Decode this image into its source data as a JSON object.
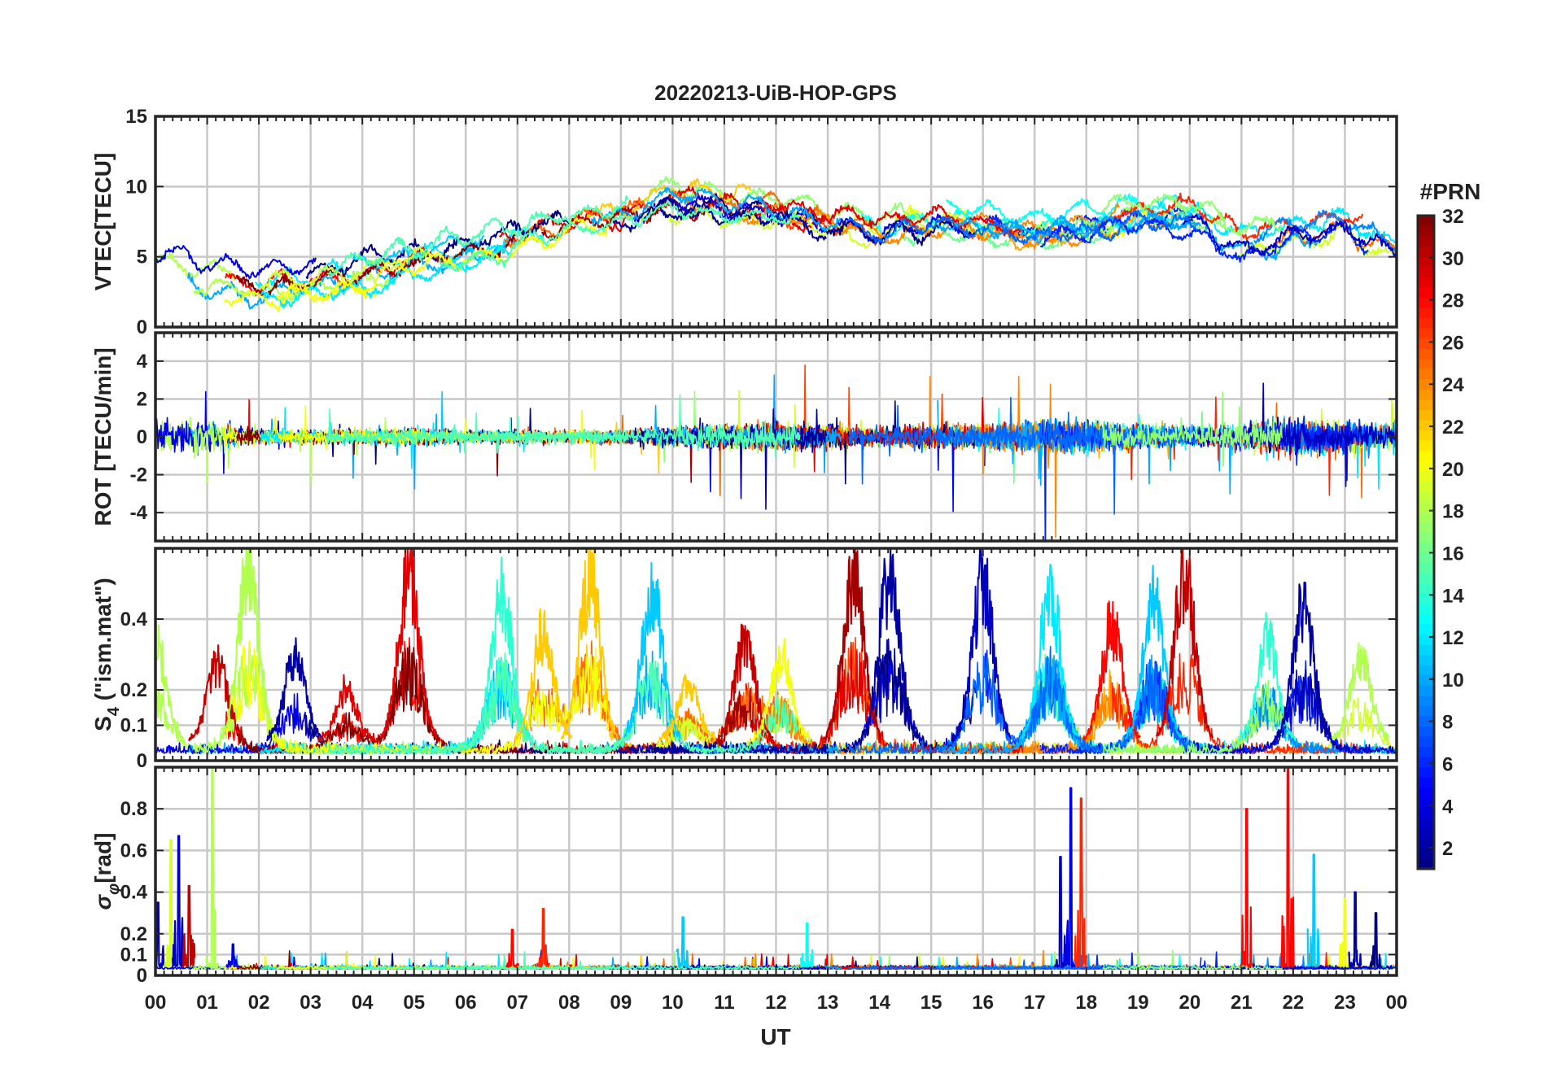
{
  "chart_data": {
    "title": "20220213-UiB-HOP-GPS",
    "type": "line",
    "xlabel": "UT",
    "x_tick_labels": [
      "00",
      "01",
      "02",
      "03",
      "04",
      "05",
      "06",
      "07",
      "08",
      "09",
      "10",
      "11",
      "12",
      "13",
      "14",
      "15",
      "16",
      "17",
      "18",
      "19",
      "20",
      "21",
      "22",
      "23",
      "00"
    ],
    "xlim_hours": [
      0,
      24
    ],
    "grid": true,
    "colorbar": {
      "label": "#PRN",
      "range": [
        1,
        32
      ],
      "ticks": [
        2,
        4,
        6,
        8,
        10,
        12,
        14,
        16,
        18,
        20,
        22,
        24,
        26,
        28,
        30,
        32
      ],
      "tick_labels": [
        "2",
        "4",
        "6",
        "8",
        "10",
        "12",
        "14",
        "16",
        "18",
        "20",
        "22",
        "24",
        "26",
        "28",
        "30",
        "32"
      ],
      "colormap": "jet"
    },
    "panels": [
      {
        "id": "vtec",
        "ylabel": "VTEC[TECU]",
        "ylim": [
          0,
          15
        ],
        "yticks": [
          0,
          5,
          10,
          15
        ],
        "ytick_labels": [
          "0",
          "5",
          "10",
          "15"
        ],
        "profile": {
          "hours": [
            0,
            1,
            2,
            3,
            4,
            5,
            6,
            7,
            8,
            9,
            10,
            11,
            12,
            13,
            14,
            15,
            16,
            17,
            18,
            19,
            20,
            21,
            22,
            23,
            24
          ],
          "typical_vtec": [
            4.5,
            3.5,
            3.2,
            3.5,
            4.0,
            4.8,
            5.5,
            6.5,
            7.5,
            8.0,
            9.0,
            8.5,
            8.5,
            7.5,
            7.0,
            7.5,
            7.0,
            6.5,
            7.0,
            7.5,
            7.5,
            5.5,
            6.5,
            7.0,
            5.0
          ]
        }
      },
      {
        "id": "rot",
        "ylabel": "ROT [TECU/min]",
        "ylim": [
          -5.5,
          5.5
        ],
        "yticks": [
          -4,
          -2,
          0,
          2,
          4
        ],
        "ytick_labels": [
          "-4",
          "-2",
          "0",
          "2",
          "4"
        ],
        "profile": {
          "hours": [
            0,
            1,
            2,
            3,
            4,
            5,
            6,
            7,
            8,
            9,
            10,
            11,
            12,
            13,
            14,
            15,
            16,
            17,
            18,
            19,
            20,
            21,
            22,
            23,
            24
          ],
          "typical_amplitude": [
            1.5,
            1.5,
            0.6,
            0.6,
            0.6,
            0.8,
            0.5,
            0.6,
            0.6,
            0.6,
            0.8,
            1.0,
            1.2,
            1.0,
            0.8,
            1.0,
            1.0,
            1.4,
            1.4,
            1.0,
            0.8,
            1.2,
            1.6,
            1.4,
            1.2
          ]
        }
      },
      {
        "id": "s4",
        "ylabel": "S4 (\"ism.mat\")",
        "ylabel_main": "S",
        "ylabel_sub": "4",
        "ylabel_rest": " (\"ism.mat\")",
        "ylim": [
          0,
          0.6
        ],
        "yticks": [
          0,
          0.1,
          0.2,
          0.4
        ],
        "ytick_labels": [
          "0",
          "0.1",
          "0.2",
          "0.4"
        ],
        "events": [
          {
            "center_h": 0.0,
            "peak": 0.35,
            "prn": 18
          },
          {
            "center_h": 1.2,
            "peak": 0.28,
            "prn": 30
          },
          {
            "center_h": 1.8,
            "peak": 0.6,
            "prn": 18
          },
          {
            "center_h": 2.7,
            "peak": 0.3,
            "prn": 2
          },
          {
            "center_h": 3.7,
            "peak": 0.18,
            "prn": 29
          },
          {
            "center_h": 4.9,
            "peak": 0.6,
            "prn": 29
          },
          {
            "center_h": 6.7,
            "peak": 0.52,
            "prn": 14
          },
          {
            "center_h": 7.5,
            "peak": 0.38,
            "prn": 22
          },
          {
            "center_h": 8.4,
            "peak": 0.6,
            "prn": 22
          },
          {
            "center_h": 9.6,
            "peak": 0.55,
            "prn": 11
          },
          {
            "center_h": 10.3,
            "peak": 0.2,
            "prn": 22
          },
          {
            "center_h": 11.4,
            "peak": 0.35,
            "prn": 30
          },
          {
            "center_h": 12.1,
            "peak": 0.3,
            "prn": 20
          },
          {
            "center_h": 13.5,
            "peak": 0.6,
            "prn": 31
          },
          {
            "center_h": 14.2,
            "peak": 0.6,
            "prn": 2
          },
          {
            "center_h": 16.0,
            "peak": 0.57,
            "prn": 3
          },
          {
            "center_h": 17.3,
            "peak": 0.54,
            "prn": 12
          },
          {
            "center_h": 18.5,
            "peak": 0.42,
            "prn": 28
          },
          {
            "center_h": 19.3,
            "peak": 0.5,
            "prn": 11
          },
          {
            "center_h": 19.9,
            "peak": 0.6,
            "prn": 30
          },
          {
            "center_h": 21.5,
            "peak": 0.36,
            "prn": 14
          },
          {
            "center_h": 22.2,
            "peak": 0.48,
            "prn": 2
          },
          {
            "center_h": 23.3,
            "peak": 0.3,
            "prn": 18
          }
        ]
      },
      {
        "id": "sigma_phi",
        "ylabel": "σφ[rad]",
        "ylabel_main": "σ",
        "ylabel_sub": "φ",
        "ylabel_rest": "[rad]",
        "ylim": [
          0,
          1.0
        ],
        "yticks": [
          0,
          0.1,
          0.2,
          0.4,
          0.6,
          0.8
        ],
        "ytick_labels": [
          "0",
          "0.1",
          "0.2",
          "0.4",
          "0.6",
          "0.8"
        ],
        "spikes": [
          {
            "h": 0.05,
            "v": 0.35,
            "prn": 3
          },
          {
            "h": 0.3,
            "v": 0.65,
            "prn": 19
          },
          {
            "h": 0.45,
            "v": 0.67,
            "prn": 3
          },
          {
            "h": 0.65,
            "v": 0.43,
            "prn": 30
          },
          {
            "h": 1.1,
            "v": 1.0,
            "prn": 18
          },
          {
            "h": 1.5,
            "v": 0.15,
            "prn": 4
          },
          {
            "h": 6.9,
            "v": 0.22,
            "prn": 28
          },
          {
            "h": 7.5,
            "v": 0.32,
            "prn": 27
          },
          {
            "h": 10.2,
            "v": 0.28,
            "prn": 11
          },
          {
            "h": 12.6,
            "v": 0.25,
            "prn": 13
          },
          {
            "h": 17.5,
            "v": 0.57,
            "prn": 3
          },
          {
            "h": 17.7,
            "v": 0.9,
            "prn": 4
          },
          {
            "h": 17.9,
            "v": 0.85,
            "prn": 27
          },
          {
            "h": 21.1,
            "v": 0.8,
            "prn": 28
          },
          {
            "h": 21.9,
            "v": 1.0,
            "prn": 28
          },
          {
            "h": 22.4,
            "v": 0.58,
            "prn": 11
          },
          {
            "h": 23.0,
            "v": 0.37,
            "prn": 20
          },
          {
            "h": 23.2,
            "v": 0.4,
            "prn": 2
          },
          {
            "h": 23.6,
            "v": 0.3,
            "prn": 1
          }
        ]
      }
    ]
  }
}
